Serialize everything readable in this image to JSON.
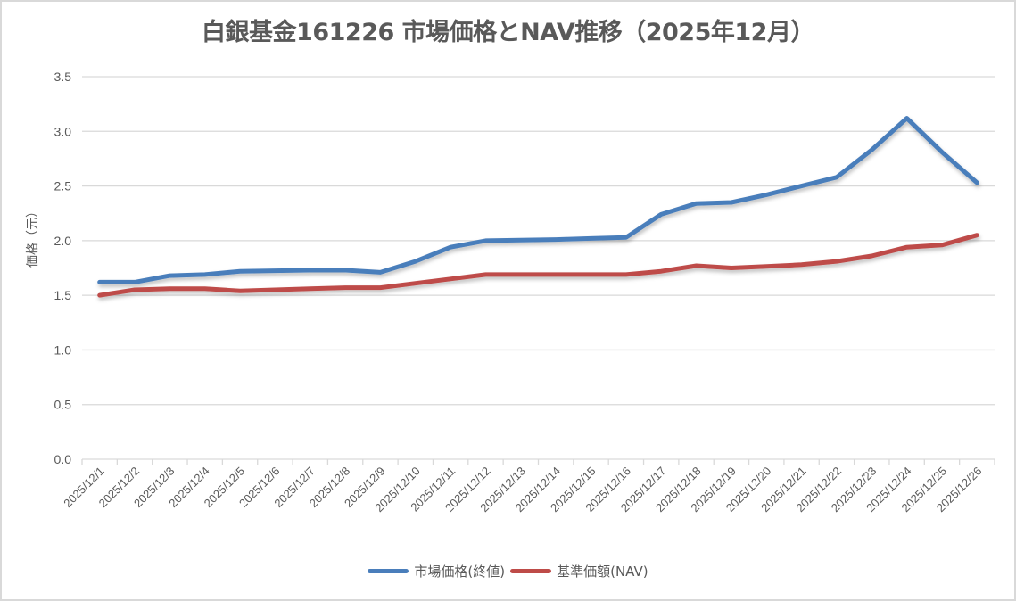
{
  "chart_data": {
    "type": "line",
    "title": "白銀基金161226 市場価格とNAV推移（2025年12月）",
    "xlabel": "",
    "ylabel": "価格（元）",
    "ylim": [
      0,
      3.5
    ],
    "yticks": [
      "0.0",
      "0.5",
      "1.0",
      "1.5",
      "2.0",
      "2.5",
      "3.0",
      "3.5"
    ],
    "grid": true,
    "legend_position": "bottom",
    "categories": [
      "2025/12/1",
      "2025/12/2",
      "2025/12/3",
      "2025/12/4",
      "2025/12/5",
      "2025/12/6",
      "2025/12/7",
      "2025/12/8",
      "2025/12/9",
      "2025/12/10",
      "2025/12/11",
      "2025/12/12",
      "2025/12/13",
      "2025/12/14",
      "2025/12/15",
      "2025/12/16",
      "2025/12/17",
      "2025/12/18",
      "2025/12/19",
      "2025/12/20",
      "2025/12/21",
      "2025/12/22",
      "2025/12/23",
      "2025/12/24",
      "2025/12/25",
      "2025/12/26"
    ],
    "series": [
      {
        "name": "市場価格(終値)",
        "color": "#4a7ebb",
        "values": [
          1.62,
          1.62,
          1.68,
          1.69,
          1.72,
          1.725,
          1.73,
          1.73,
          1.71,
          1.81,
          1.94,
          2.0,
          2.005,
          2.01,
          2.02,
          2.03,
          2.24,
          2.34,
          2.35,
          2.42,
          2.5,
          2.58,
          2.83,
          3.12,
          2.81,
          2.53
        ]
      },
      {
        "name": "基準価額(NAV)",
        "color": "#be4b48",
        "values": [
          1.5,
          1.55,
          1.56,
          1.56,
          1.54,
          1.55,
          1.56,
          1.57,
          1.57,
          1.61,
          1.65,
          1.69,
          1.69,
          1.69,
          1.69,
          1.69,
          1.72,
          1.77,
          1.75,
          1.765,
          1.78,
          1.81,
          1.86,
          1.94,
          1.96,
          2.05
        ]
      }
    ]
  },
  "header": {
    "title": "白銀基金161226 市場価格とNAV推移（2025年12月）"
  },
  "axis": {
    "ylabel": "価格（元）"
  },
  "legend": {
    "items": [
      {
        "label": "市場価格(終値)",
        "color": "#4a7ebb"
      },
      {
        "label": "基準価額(NAV)",
        "color": "#be4b48"
      }
    ]
  }
}
